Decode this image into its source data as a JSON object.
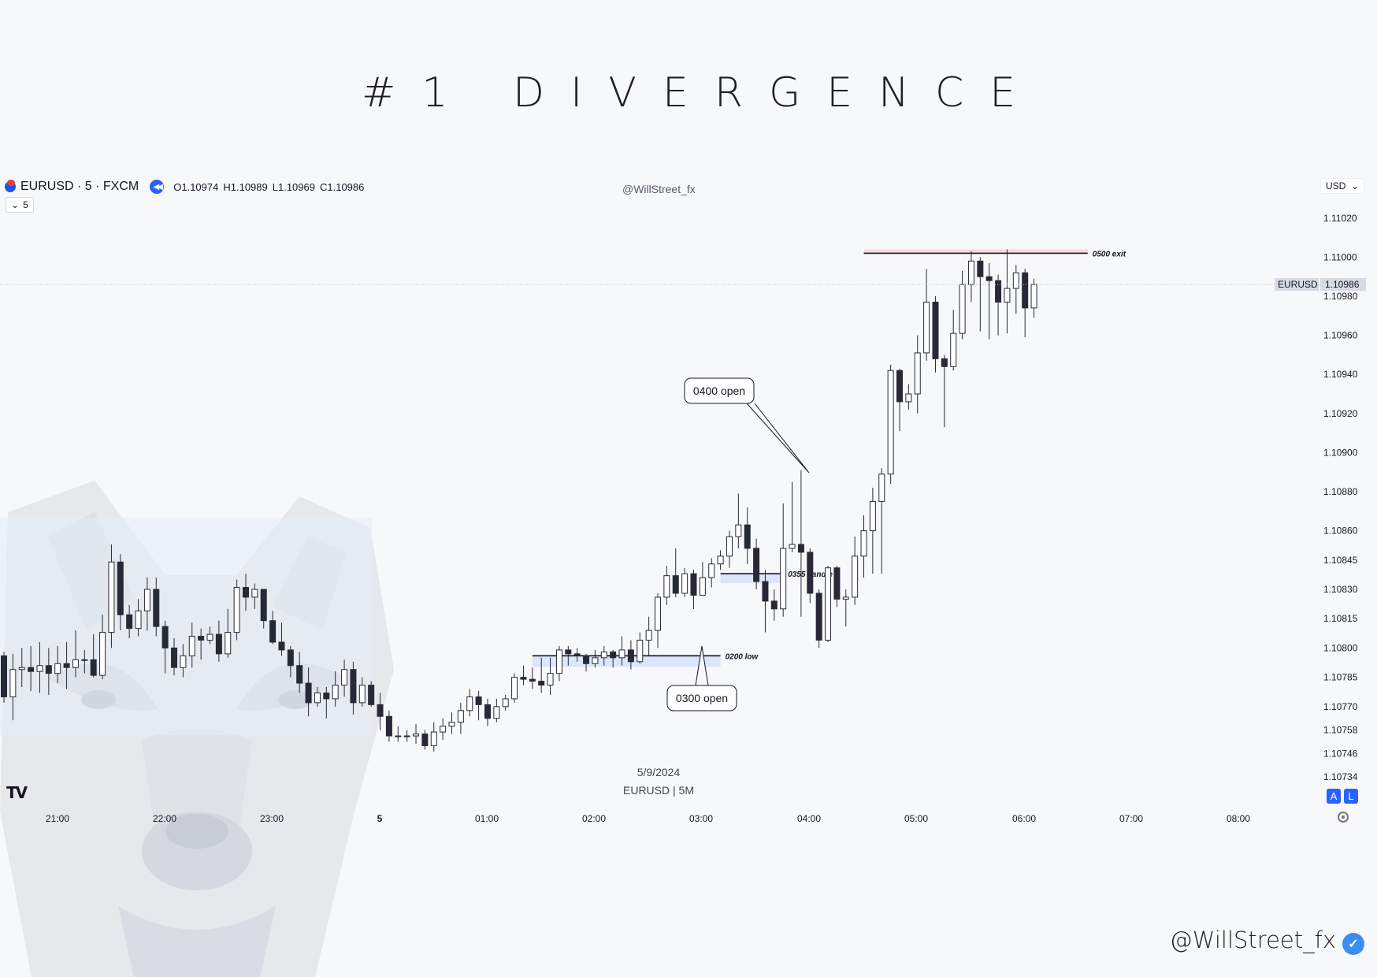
{
  "page": {
    "title": "#1 DIVERGENCE",
    "footer_handle": "@WillStreet_fx"
  },
  "chart_header": {
    "symbol": "EURUSD · 5 · FXCM",
    "ohlc": [
      {
        "k": "O",
        "v": "1.10974"
      },
      {
        "k": "H",
        "v": "1.10989"
      },
      {
        "k": "L",
        "v": "1.10969"
      },
      {
        "k": "C",
        "v": "1.10986"
      }
    ],
    "interval_chip": "5",
    "watermark": "@WillStreet_fx",
    "currency": "USD",
    "bottom_date": "5/9/2024",
    "bottom_sub": "EURUSD | 5M",
    "badge_a": "A",
    "badge_l": "L",
    "tv_logo": "TV"
  },
  "colors": {
    "bull": "#ffffff",
    "bear": "#262a36",
    "wick": "#262a36",
    "blue_zone": "#dbe5fb",
    "red_zone": "#f6d9dc",
    "price_tag": "#d6dae2"
  },
  "chart_data": {
    "type": "candlestick",
    "symbol": "EURUSD",
    "timeframe": "5",
    "ylim": [
      1.10728,
      1.11032
    ],
    "y_ticks": [
      "1.11020",
      "1.11000",
      "1.10980",
      "1.10960",
      "1.10940",
      "1.10920",
      "1.10900",
      "1.10880",
      "1.10860",
      "1.10845",
      "1.10830",
      "1.10815",
      "1.10800",
      "1.10785",
      "1.10770",
      "1.10758",
      "1.10746",
      "1.10734"
    ],
    "x_ticks": [
      "21:00",
      "22:00",
      "23:00",
      "5",
      "01:00",
      "02:00",
      "03:00",
      "04:00",
      "05:00",
      "06:00",
      "07:00",
      "08:00"
    ],
    "last_price": {
      "label": "EURUSD",
      "value": "1.10986"
    },
    "candles": [
      [
        1.10796,
        1.10775,
        1.10798,
        1.10772
      ],
      [
        1.10775,
        1.10789,
        1.10797,
        1.10763
      ],
      [
        1.10789,
        1.1079,
        1.108,
        1.1078
      ],
      [
        1.1079,
        1.10788,
        1.10801,
        1.10778
      ],
      [
        1.10788,
        1.10791,
        1.10803,
        1.10777
      ],
      [
        1.10791,
        1.10787,
        1.108,
        1.10776
      ],
      [
        1.10787,
        1.10792,
        1.10801,
        1.10782
      ],
      [
        1.10792,
        1.1079,
        1.10803,
        1.10779
      ],
      [
        1.1079,
        1.10794,
        1.10809,
        1.10785
      ],
      [
        1.10794,
        1.10794,
        1.10799,
        1.10787
      ],
      [
        1.10794,
        1.10786,
        1.10807,
        1.10785
      ],
      [
        1.10786,
        1.10808,
        1.10817,
        1.10784
      ],
      [
        1.10808,
        1.10844,
        1.10853,
        1.108
      ],
      [
        1.10844,
        1.10817,
        1.10848,
        1.10809
      ],
      [
        1.10817,
        1.1081,
        1.10822,
        1.10805
      ],
      [
        1.1081,
        1.10819,
        1.10825,
        1.10806
      ],
      [
        1.10819,
        1.1083,
        1.10836,
        1.10809
      ],
      [
        1.1083,
        1.10811,
        1.10836,
        1.10806
      ],
      [
        1.10811,
        1.108,
        1.10814,
        1.10787
      ],
      [
        1.108,
        1.1079,
        1.10805,
        1.10786
      ],
      [
        1.1079,
        1.10796,
        1.10802,
        1.10785
      ],
      [
        1.10796,
        1.10806,
        1.10813,
        1.1079
      ],
      [
        1.10806,
        1.10804,
        1.1081,
        1.10794
      ],
      [
        1.10804,
        1.10807,
        1.10811,
        1.10802
      ],
      [
        1.10807,
        1.10797,
        1.10814,
        1.10793
      ],
      [
        1.10797,
        1.10808,
        1.1082,
        1.10795
      ],
      [
        1.10808,
        1.10831,
        1.10835,
        1.10804
      ],
      [
        1.10831,
        1.10826,
        1.10838,
        1.10819
      ],
      [
        1.10826,
        1.1083,
        1.10833,
        1.1082
      ],
      [
        1.1083,
        1.10814,
        1.1083,
        1.1081
      ],
      [
        1.10814,
        1.10803,
        1.10819,
        1.10802
      ],
      [
        1.10803,
        1.10799,
        1.10813,
        1.10796
      ],
      [
        1.10799,
        1.10791,
        1.10801,
        1.10785
      ],
      [
        1.10791,
        1.10782,
        1.10798,
        1.10777
      ],
      [
        1.10782,
        1.10772,
        1.1079,
        1.10765
      ],
      [
        1.10772,
        1.10777,
        1.1078,
        1.1077
      ],
      [
        1.10777,
        1.10774,
        1.1078,
        1.10764
      ],
      [
        1.10774,
        1.10781,
        1.10788,
        1.1077
      ],
      [
        1.10781,
        1.10789,
        1.10794,
        1.10775
      ],
      [
        1.10789,
        1.10772,
        1.10793,
        1.10766
      ],
      [
        1.10772,
        1.10781,
        1.10785,
        1.1077
      ],
      [
        1.10781,
        1.10771,
        1.10783,
        1.1077
      ],
      [
        1.10771,
        1.10765,
        1.10777,
        1.10758
      ],
      [
        1.10765,
        1.10755,
        1.10768,
        1.10752
      ],
      [
        1.10755,
        1.10755,
        1.1076,
        1.10752
      ],
      [
        1.10755,
        1.10755,
        1.10758,
        1.10752
      ],
      [
        1.10755,
        1.10756,
        1.10761,
        1.10751
      ],
      [
        1.10756,
        1.1075,
        1.10758,
        1.10748
      ],
      [
        1.1075,
        1.10757,
        1.10762,
        1.10747
      ],
      [
        1.10757,
        1.1076,
        1.10764,
        1.10753
      ],
      [
        1.1076,
        1.10762,
        1.10767,
        1.10756
      ],
      [
        1.10762,
        1.10768,
        1.10772,
        1.10756
      ],
      [
        1.10768,
        1.10775,
        1.10779,
        1.10765
      ],
      [
        1.10775,
        1.10771,
        1.10778,
        1.10763
      ],
      [
        1.10771,
        1.10764,
        1.10774,
        1.1076
      ],
      [
        1.10764,
        1.1077,
        1.10774,
        1.10762
      ],
      [
        1.1077,
        1.10774,
        1.10776,
        1.10768
      ],
      [
        1.10774,
        1.10785,
        1.10787,
        1.10772
      ],
      [
        1.10785,
        1.10784,
        1.10791,
        1.10781
      ],
      [
        1.10784,
        1.10783,
        1.1079,
        1.10779
      ],
      [
        1.10783,
        1.10781,
        1.10795,
        1.10777
      ],
      [
        1.10781,
        1.10787,
        1.10795,
        1.10776
      ],
      [
        1.10787,
        1.10799,
        1.10801,
        1.10783
      ],
      [
        1.10799,
        1.10797,
        1.10801,
        1.10791
      ],
      [
        1.10797,
        1.10796,
        1.108,
        1.10793
      ],
      [
        1.10796,
        1.10792,
        1.10797,
        1.10788
      ],
      [
        1.10792,
        1.10795,
        1.10799,
        1.1079
      ],
      [
        1.10795,
        1.10798,
        1.10801,
        1.10791
      ],
      [
        1.10798,
        1.10795,
        1.10799,
        1.1079
      ],
      [
        1.10795,
        1.10799,
        1.10806,
        1.10791
      ],
      [
        1.10799,
        1.10793,
        1.10804,
        1.10789
      ],
      [
        1.10793,
        1.10804,
        1.10808,
        1.10792
      ],
      [
        1.10804,
        1.10809,
        1.10816,
        1.10796
      ],
      [
        1.10809,
        1.10826,
        1.10828,
        1.108
      ],
      [
        1.10826,
        1.10837,
        1.10842,
        1.10822
      ],
      [
        1.10837,
        1.10828,
        1.10851,
        1.10826
      ],
      [
        1.10828,
        1.10838,
        1.10841,
        1.10826
      ],
      [
        1.10838,
        1.10827,
        1.1084,
        1.1082
      ],
      [
        1.10827,
        1.10836,
        1.10844,
        1.10828
      ],
      [
        1.10836,
        1.10843,
        1.10846,
        1.10831
      ],
      [
        1.10843,
        1.10847,
        1.1085,
        1.1084
      ],
      [
        1.10847,
        1.10857,
        1.1086,
        1.10841
      ],
      [
        1.10857,
        1.10863,
        1.10879,
        1.10851
      ],
      [
        1.10863,
        1.10851,
        1.10872,
        1.10843
      ],
      [
        1.10851,
        1.10834,
        1.10856,
        1.1083
      ],
      [
        1.10834,
        1.10824,
        1.1084,
        1.10808
      ],
      [
        1.10824,
        1.1082,
        1.1083,
        1.10814
      ],
      [
        1.1082,
        1.10851,
        1.10874,
        1.10816
      ],
      [
        1.10851,
        1.10853,
        1.10885,
        1.10849
      ],
      [
        1.10853,
        1.10849,
        1.10891,
        1.10816
      ],
      [
        1.10849,
        1.10828,
        1.10851,
        1.10823
      ],
      [
        1.10828,
        1.10804,
        1.1083,
        1.108
      ],
      [
        1.10804,
        1.10841,
        1.10842,
        1.10803
      ],
      [
        1.10841,
        1.10825,
        1.10842,
        1.10821
      ],
      [
        1.10825,
        1.10826,
        1.1083,
        1.10811
      ],
      [
        1.10826,
        1.10847,
        1.10857,
        1.10822
      ],
      [
        1.10847,
        1.1086,
        1.10868,
        1.10836
      ],
      [
        1.1086,
        1.10875,
        1.10882,
        1.10838
      ],
      [
        1.10875,
        1.10889,
        1.10892,
        1.10838
      ],
      [
        1.10889,
        1.10942,
        1.10945,
        1.10884
      ],
      [
        1.10942,
        1.10926,
        1.10943,
        1.10911
      ],
      [
        1.10926,
        1.1093,
        1.10935,
        1.10922
      ],
      [
        1.1093,
        1.10951,
        1.1096,
        1.1092
      ],
      [
        1.10951,
        1.10977,
        1.10994,
        1.10947
      ],
      [
        1.10977,
        1.10948,
        1.1098,
        1.10941
      ],
      [
        1.10948,
        1.10944,
        1.1095,
        1.10913
      ],
      [
        1.10944,
        1.10961,
        1.10973,
        1.10942
      ],
      [
        1.10961,
        1.10986,
        1.10993,
        1.10958
      ],
      [
        1.10986,
        1.10998,
        1.11003,
        1.10977
      ],
      [
        1.10998,
        1.1099,
        1.11,
        1.10962
      ],
      [
        1.1099,
        1.10988,
        1.10997,
        1.10958
      ],
      [
        1.10988,
        1.10977,
        1.10991,
        1.1096
      ],
      [
        1.10977,
        1.10984,
        1.11004,
        1.10961
      ],
      [
        1.10984,
        1.10992,
        1.10996,
        1.10971
      ],
      [
        1.10992,
        1.10974,
        1.10994,
        1.10959
      ],
      [
        1.10974,
        1.10986,
        1.10989,
        1.10969
      ]
    ],
    "annotations": [
      {
        "text": "0500 exit",
        "price": 1.11002,
        "zone": "red"
      },
      {
        "text": "0355 candle",
        "price": 1.10838,
        "zone": "blue"
      },
      {
        "text": "0200 low",
        "price": 1.10796,
        "zone": "blue"
      }
    ],
    "callouts": [
      {
        "text": "0400 open"
      },
      {
        "text": "0300 open"
      }
    ]
  }
}
